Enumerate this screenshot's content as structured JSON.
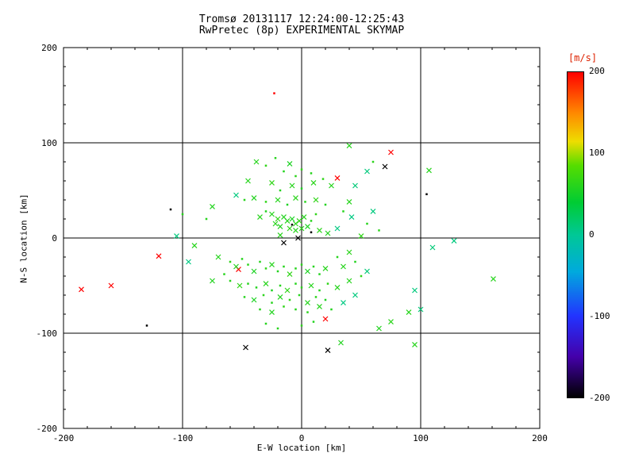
{
  "chart_data": {
    "type": "scatter",
    "title": "Tromsø 20131117 12:24:00-12:25:43",
    "subtitle": "RwPretec (8p) EXPERIMENTAL SKYMAP",
    "xlabel": "E-W location [km]",
    "ylabel": "N-S location [km]",
    "xlim": [
      -200,
      200
    ],
    "ylim": [
      -200,
      200
    ],
    "xticks": [
      -200,
      -100,
      0,
      100,
      200
    ],
    "yticks": [
      -200,
      -100,
      0,
      100,
      200
    ],
    "grid": true,
    "legend": "none",
    "markers": {
      "x": "cross",
      "d": "dot"
    },
    "colorbar": {
      "label": "[m/s]",
      "min": -200,
      "max": 200,
      "ticks": [
        200,
        100,
        0,
        -100,
        -200
      ],
      "stops": [
        [
          200,
          "#ff0000"
        ],
        [
          150,
          "#ff8800"
        ],
        [
          115,
          "#eedd00"
        ],
        [
          85,
          "#55dd00"
        ],
        [
          40,
          "#00cc33"
        ],
        [
          0,
          "#00c896"
        ],
        [
          -45,
          "#00aadd"
        ],
        [
          -100,
          "#2233ff"
        ],
        [
          -150,
          "#4400aa"
        ],
        [
          -200,
          "#000000"
        ]
      ]
    },
    "points": [
      [
        -23,
        152,
        200,
        "d"
      ],
      [
        75,
        90,
        200,
        "x"
      ],
      [
        30,
        63,
        200,
        "x"
      ],
      [
        -120,
        -19,
        200,
        "x"
      ],
      [
        -185,
        -54,
        200,
        "x"
      ],
      [
        -160,
        -50,
        200,
        "x"
      ],
      [
        -53,
        -33,
        200,
        "x"
      ],
      [
        20,
        -85,
        200,
        "x"
      ],
      [
        70,
        75,
        -200,
        "x"
      ],
      [
        -15,
        -5,
        -200,
        "x"
      ],
      [
        -3,
        0,
        -200,
        "x"
      ],
      [
        -47,
        -115,
        -200,
        "x"
      ],
      [
        22,
        -118,
        -200,
        "x"
      ],
      [
        -130,
        -92,
        -200,
        "d"
      ],
      [
        -110,
        30,
        -200,
        "d"
      ],
      [
        105,
        46,
        -200,
        "d"
      ],
      [
        8,
        6,
        -200,
        "d"
      ],
      [
        -8,
        14,
        -200,
        "d"
      ],
      [
        -105,
        2,
        10,
        "x"
      ],
      [
        -95,
        -25,
        8,
        "x"
      ],
      [
        45,
        55,
        12,
        "x"
      ],
      [
        60,
        28,
        10,
        "x"
      ],
      [
        42,
        22,
        8,
        "x"
      ],
      [
        110,
        -10,
        12,
        "x"
      ],
      [
        95,
        -55,
        10,
        "x"
      ],
      [
        35,
        -68,
        8,
        "x"
      ],
      [
        55,
        -35,
        12,
        "x"
      ],
      [
        -55,
        45,
        10,
        "x"
      ],
      [
        30,
        10,
        8,
        "x"
      ],
      [
        55,
        70,
        10,
        "x"
      ],
      [
        128,
        -3,
        10,
        "x"
      ],
      [
        45,
        -60,
        10,
        "x"
      ],
      [
        100,
        -75,
        12,
        "x"
      ],
      [
        -38,
        80,
        60,
        "x"
      ],
      [
        -30,
        76,
        65,
        "d"
      ],
      [
        -22,
        84,
        60,
        "d"
      ],
      [
        -15,
        70,
        58,
        "d"
      ],
      [
        -10,
        78,
        55,
        "x"
      ],
      [
        -5,
        65,
        62,
        "d"
      ],
      [
        0,
        72,
        65,
        "d"
      ],
      [
        8,
        68,
        60,
        "d"
      ],
      [
        40,
        97,
        60,
        "x"
      ],
      [
        -45,
        60,
        60,
        "x"
      ],
      [
        -25,
        58,
        65,
        "x"
      ],
      [
        -18,
        50,
        58,
        "d"
      ],
      [
        -8,
        55,
        60,
        "x"
      ],
      [
        0,
        52,
        55,
        "d"
      ],
      [
        10,
        58,
        62,
        "x"
      ],
      [
        18,
        62,
        65,
        "d"
      ],
      [
        25,
        55,
        60,
        "x"
      ],
      [
        -48,
        40,
        60,
        "d"
      ],
      [
        -40,
        42,
        58,
        "x"
      ],
      [
        -30,
        38,
        65,
        "d"
      ],
      [
        -20,
        40,
        60,
        "x"
      ],
      [
        -12,
        35,
        55,
        "d"
      ],
      [
        -5,
        42,
        62,
        "x"
      ],
      [
        3,
        38,
        60,
        "d"
      ],
      [
        12,
        40,
        65,
        "x"
      ],
      [
        20,
        35,
        58,
        "d"
      ],
      [
        40,
        38,
        60,
        "x"
      ],
      [
        60,
        80,
        62,
        "d"
      ],
      [
        107,
        71,
        60,
        "x"
      ],
      [
        -75,
        33,
        58,
        "x"
      ],
      [
        -80,
        20,
        60,
        "d"
      ],
      [
        -100,
        25,
        60,
        "d"
      ],
      [
        -25,
        25,
        60,
        "x"
      ],
      [
        -20,
        20,
        65,
        "x"
      ],
      [
        -15,
        22,
        58,
        "x"
      ],
      [
        -12,
        18,
        60,
        "x"
      ],
      [
        -8,
        20,
        55,
        "x"
      ],
      [
        -5,
        15,
        62,
        "x"
      ],
      [
        -2,
        18,
        65,
        "x"
      ],
      [
        2,
        22,
        60,
        "x"
      ],
      [
        -18,
        12,
        58,
        "x"
      ],
      [
        -10,
        10,
        65,
        "x"
      ],
      [
        -5,
        8,
        60,
        "x"
      ],
      [
        0,
        10,
        62,
        "x"
      ],
      [
        5,
        12,
        55,
        "x"
      ],
      [
        -22,
        15,
        60,
        "x"
      ],
      [
        8,
        18,
        60,
        "d"
      ],
      [
        12,
        25,
        65,
        "d"
      ],
      [
        -30,
        28,
        58,
        "d"
      ],
      [
        -35,
        22,
        60,
        "x"
      ],
      [
        15,
        8,
        62,
        "x"
      ],
      [
        -18,
        3,
        60,
        "x"
      ],
      [
        22,
        5,
        58,
        "x"
      ],
      [
        55,
        15,
        60,
        "d"
      ],
      [
        65,
        8,
        62,
        "d"
      ],
      [
        50,
        2,
        65,
        "x"
      ],
      [
        35,
        28,
        60,
        "d"
      ],
      [
        -90,
        -8,
        60,
        "x"
      ],
      [
        -70,
        -20,
        60,
        "x"
      ],
      [
        -60,
        -25,
        65,
        "d"
      ],
      [
        -55,
        -30,
        58,
        "x"
      ],
      [
        -50,
        -22,
        60,
        "d"
      ],
      [
        -45,
        -28,
        62,
        "d"
      ],
      [
        -40,
        -35,
        55,
        "x"
      ],
      [
        -35,
        -25,
        60,
        "d"
      ],
      [
        -30,
        -32,
        65,
        "d"
      ],
      [
        -25,
        -28,
        60,
        "x"
      ],
      [
        -20,
        -35,
        58,
        "d"
      ],
      [
        -15,
        -30,
        60,
        "d"
      ],
      [
        -10,
        -38,
        65,
        "x"
      ],
      [
        -5,
        -32,
        60,
        "d"
      ],
      [
        0,
        -28,
        62,
        "d"
      ],
      [
        5,
        -35,
        55,
        "x"
      ],
      [
        10,
        -30,
        60,
        "d"
      ],
      [
        15,
        -38,
        58,
        "d"
      ],
      [
        20,
        -32,
        60,
        "x"
      ],
      [
        -60,
        -45,
        62,
        "d"
      ],
      [
        -52,
        -50,
        65,
        "x"
      ],
      [
        -45,
        -48,
        60,
        "d"
      ],
      [
        -38,
        -52,
        58,
        "d"
      ],
      [
        -30,
        -48,
        60,
        "x"
      ],
      [
        -25,
        -55,
        55,
        "d"
      ],
      [
        -18,
        -50,
        60,
        "d"
      ],
      [
        -12,
        -55,
        65,
        "x"
      ],
      [
        -5,
        -48,
        60,
        "d"
      ],
      [
        0,
        -52,
        62,
        "d"
      ],
      [
        8,
        -50,
        60,
        "x"
      ],
      [
        15,
        -55,
        58,
        "d"
      ],
      [
        22,
        -48,
        65,
        "d"
      ],
      [
        30,
        -52,
        60,
        "x"
      ],
      [
        -48,
        -62,
        60,
        "d"
      ],
      [
        -40,
        -65,
        55,
        "x"
      ],
      [
        -32,
        -60,
        62,
        "d"
      ],
      [
        -25,
        -68,
        60,
        "d"
      ],
      [
        -18,
        -62,
        58,
        "x"
      ],
      [
        -10,
        -65,
        65,
        "d"
      ],
      [
        -2,
        -60,
        60,
        "d"
      ],
      [
        5,
        -68,
        60,
        "x"
      ],
      [
        12,
        -62,
        62,
        "d"
      ],
      [
        20,
        -65,
        55,
        "d"
      ],
      [
        -35,
        -75,
        60,
        "d"
      ],
      [
        -25,
        -78,
        58,
        "x"
      ],
      [
        -15,
        -72,
        65,
        "d"
      ],
      [
        -5,
        -75,
        60,
        "d"
      ],
      [
        5,
        -78,
        62,
        "d"
      ],
      [
        15,
        -72,
        60,
        "x"
      ],
      [
        25,
        -75,
        58,
        "d"
      ],
      [
        40,
        -45,
        60,
        "x"
      ],
      [
        50,
        -40,
        65,
        "d"
      ],
      [
        35,
        -30,
        60,
        "x"
      ],
      [
        45,
        -25,
        58,
        "d"
      ],
      [
        30,
        -20,
        60,
        "d"
      ],
      [
        40,
        -15,
        62,
        "x"
      ],
      [
        -65,
        -38,
        60,
        "d"
      ],
      [
        -75,
        -45,
        58,
        "x"
      ],
      [
        90,
        -78,
        60,
        "x"
      ],
      [
        65,
        -95,
        58,
        "x"
      ],
      [
        95,
        -112,
        60,
        "x"
      ],
      [
        75,
        -88,
        62,
        "x"
      ],
      [
        161,
        -43,
        60,
        "x"
      ],
      [
        33,
        -110,
        58,
        "x"
      ],
      [
        -20,
        -95,
        60,
        "d"
      ],
      [
        0,
        -92,
        62,
        "d"
      ],
      [
        -30,
        -90,
        60,
        "d"
      ],
      [
        10,
        -88,
        58,
        "d"
      ]
    ]
  }
}
